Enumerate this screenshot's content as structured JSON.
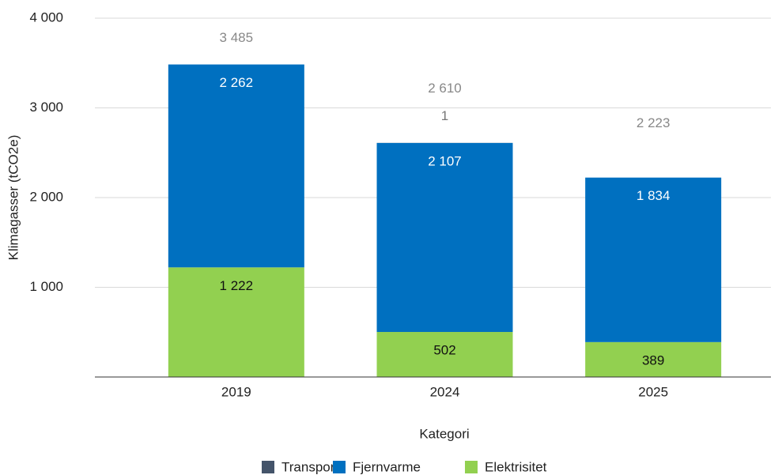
{
  "chart_data": {
    "type": "stacked_bar",
    "x_label": "Kategori",
    "y_label": "Klimagasser (tCO2e)",
    "categories": [
      "2019",
      "2024",
      "2025"
    ],
    "series": [
      {
        "name": "Elektrisitet",
        "color": "#92d050",
        "values": [
          1222,
          502,
          389
        ],
        "value_labels": [
          "1 222",
          "502",
          "389"
        ]
      },
      {
        "name": "Fjernvarme",
        "color": "#0070c0",
        "values": [
          2262,
          2107,
          1834
        ],
        "value_labels": [
          "2 262",
          "2 107",
          "1 834"
        ]
      },
      {
        "name": "Transport",
        "color": "#44546a",
        "values": [
          0,
          1,
          0
        ],
        "value_labels": [
          null,
          "1",
          null
        ]
      }
    ],
    "totals": [
      3485,
      2610,
      2223
    ],
    "total_labels": [
      "3 485",
      "2 610",
      "2 223"
    ],
    "legend_order": [
      "Transport",
      "Fjernvarme",
      "Elektrisitet"
    ],
    "ylim": [
      0,
      4000
    ],
    "yticks": [
      {
        "value": 1000,
        "label": "1 000"
      },
      {
        "value": 2000,
        "label": "2 000"
      },
      {
        "value": 3000,
        "label": "3 000"
      },
      {
        "value": 4000,
        "label": "4 000"
      }
    ],
    "grid": true,
    "legend": "bottom"
  }
}
